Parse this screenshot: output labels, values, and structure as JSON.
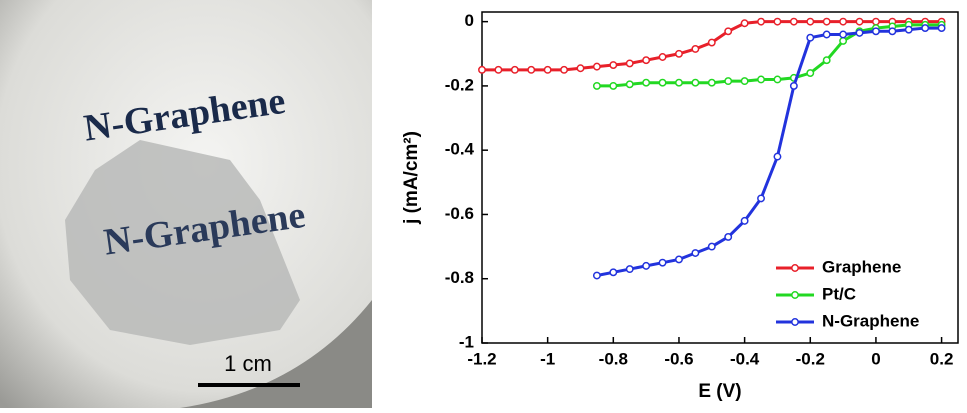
{
  "chart_data": {
    "type": "line",
    "xlabel": "E (V)",
    "ylabel": "j (mA/cm²)",
    "xlim": [
      -1.2,
      0.25
    ],
    "ylim": [
      -1,
      0.03
    ],
    "xticks": [
      -1.2,
      -1,
      -0.8,
      -0.6,
      -0.4,
      -0.2,
      0,
      0.2
    ],
    "yticks": [
      0,
      -0.2,
      -0.4,
      -0.6,
      -0.8,
      -1
    ],
    "legend": "lower right",
    "series": [
      {
        "name": "Graphene",
        "color": "#e8202a",
        "x": [
          -1.2,
          -1.15,
          -1.1,
          -1.05,
          -1,
          -0.95,
          -0.9,
          -0.85,
          -0.8,
          -0.75,
          -0.7,
          -0.65,
          -0.6,
          -0.55,
          -0.5,
          -0.45,
          -0.4,
          -0.35,
          -0.3,
          -0.25,
          -0.2,
          -0.15,
          -0.1,
          -0.05,
          0,
          0.05,
          0.1,
          0.15,
          0.2
        ],
        "values": [
          -0.15,
          -0.15,
          -0.15,
          -0.15,
          -0.15,
          -0.15,
          -0.145,
          -0.14,
          -0.135,
          -0.13,
          -0.12,
          -0.11,
          -0.1,
          -0.085,
          -0.065,
          -0.03,
          -0.005,
          0,
          0,
          0,
          0,
          0,
          0,
          0,
          0,
          0,
          0,
          0,
          0
        ]
      },
      {
        "name": "Pt/C",
        "color": "#22d822",
        "x": [
          -0.85,
          -0.8,
          -0.75,
          -0.7,
          -0.65,
          -0.6,
          -0.55,
          -0.5,
          -0.45,
          -0.4,
          -0.35,
          -0.3,
          -0.25,
          -0.2,
          -0.15,
          -0.1,
          -0.05,
          0,
          0.05,
          0.1,
          0.15,
          0.2
        ],
        "values": [
          -0.2,
          -0.2,
          -0.195,
          -0.19,
          -0.19,
          -0.19,
          -0.19,
          -0.19,
          -0.185,
          -0.185,
          -0.18,
          -0.18,
          -0.175,
          -0.16,
          -0.12,
          -0.06,
          -0.03,
          -0.02,
          -0.015,
          -0.01,
          -0.01,
          -0.01
        ]
      },
      {
        "name": "N-Graphene",
        "color": "#2233dd",
        "x": [
          -0.85,
          -0.8,
          -0.75,
          -0.7,
          -0.65,
          -0.6,
          -0.55,
          -0.5,
          -0.45,
          -0.4,
          -0.35,
          -0.3,
          -0.25,
          -0.2,
          -0.15,
          -0.1,
          -0.05,
          0,
          0.05,
          0.1,
          0.15,
          0.2
        ],
        "values": [
          -0.79,
          -0.78,
          -0.77,
          -0.76,
          -0.75,
          -0.74,
          -0.72,
          -0.7,
          -0.67,
          -0.62,
          -0.55,
          -0.42,
          -0.2,
          -0.05,
          -0.04,
          -0.04,
          -0.035,
          -0.03,
          -0.03,
          -0.025,
          -0.02,
          -0.02
        ]
      }
    ]
  },
  "image": {
    "texts": [
      "N-Graphene",
      "N-Graphene"
    ],
    "scale_bar_label": "1 cm"
  }
}
